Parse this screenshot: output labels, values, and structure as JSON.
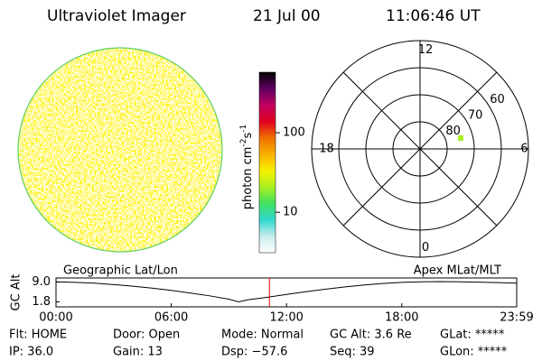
{
  "header": {
    "title": "Ultraviolet Imager",
    "date": "21 Jul 00",
    "time": "11:06:46 UT"
  },
  "colorbar": {
    "label_parts": [
      "photon cm",
      "-2",
      "s",
      "-1"
    ],
    "log_scale": true,
    "lim": [
      3.1,
      577
    ],
    "ticks": [
      10,
      100
    ],
    "colors": [
      "#ffffff",
      "#c8ecec",
      "#30d8d0",
      "#40e060",
      "#a8f020",
      "#f8f000",
      "#f8b000",
      "#f07000",
      "#e00020",
      "#c00060",
      "#600060",
      "#000000"
    ]
  },
  "polar": {
    "lat_lim": [
      50,
      90
    ],
    "lat_ticks": [
      60,
      70,
      80
    ],
    "mlt_ticks": [
      0,
      6,
      12,
      18
    ],
    "points": [
      {
        "mlat": 74.5,
        "mlt": 7.0,
        "color": "#a8f020"
      }
    ]
  },
  "altitude": {
    "y_label": "GC Alt",
    "ylim": [
      0,
      10.5
    ],
    "yticks": [
      {
        "value": 9,
        "label": "9.0"
      },
      1.8
    ],
    "xlim": [
      0,
      23.983
    ],
    "xticks": [
      {
        "value": 0,
        "label": "00:00"
      },
      {
        "value": 6,
        "label": "06:00"
      },
      {
        "value": 12,
        "label": "12:00"
      },
      {
        "value": 18,
        "label": "18:00"
      },
      {
        "value": 23.983,
        "label": "23:59"
      }
    ],
    "left_caption": "Geographic Lat/Lon",
    "right_caption": "Apex MLat/MLT",
    "hours": [
      0,
      1,
      2,
      3,
      4,
      5,
      6,
      7,
      8,
      9,
      9.5,
      10,
      11,
      12,
      13,
      14,
      15,
      16,
      17,
      18,
      19,
      20,
      21,
      22,
      23,
      24
    ],
    "values": [
      9.1,
      8.9,
      8.6,
      8.1,
      7.5,
      6.8,
      6.0,
      5.0,
      4.0,
      2.8,
      1.8,
      2.6,
      3.5,
      4.5,
      5.5,
      6.4,
      7.2,
      7.9,
      8.5,
      8.9,
      9.1,
      9.2,
      9.1,
      9.0,
      8.8,
      8.6
    ],
    "current_hour": 11.11,
    "current_color": "#ff0000"
  },
  "status": [
    [
      "Flt: HOME",
      "IP: 36.0"
    ],
    [
      "Door: Open",
      "Gain: 13"
    ],
    [
      "Mode: Normal",
      "Dsp: −57.6"
    ],
    [
      "GC Alt: 3.6 Re",
      "Seq: 39"
    ],
    [
      "GLat: *****",
      "GLon: *****"
    ]
  ]
}
